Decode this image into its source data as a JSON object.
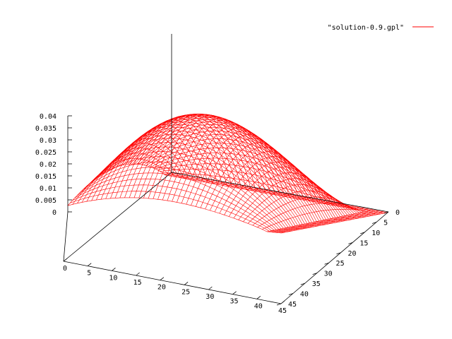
{
  "chart_data": {
    "type": "surface",
    "series_name": "\"solution-0.9.gpl\"",
    "line_color": "#ff0000",
    "axis_color": "#000000",
    "x_range": [
      0,
      45
    ],
    "y_range": [
      0,
      45
    ],
    "z_range": [
      0,
      0.04
    ],
    "x_ticks": [
      "0",
      "5",
      "10",
      "15",
      "20",
      "25",
      "30",
      "35",
      "40",
      "45"
    ],
    "y_ticks": [
      "0",
      "5",
      "10",
      "15",
      "20",
      "25",
      "30",
      "35",
      "40",
      "45"
    ],
    "z_ticks": [
      "0",
      "0.005",
      "0.01",
      "0.015",
      "0.02",
      "0.025",
      "0.03",
      "0.035",
      "0.04"
    ],
    "grid_size": 45,
    "surface_peak": 0.038,
    "corner_values": {
      "x0_y0": 0.0,
      "x45_y0": 0.0,
      "x0_y45": 0.0,
      "x45_y45": 0.0
    },
    "ridge_values": {
      "x0_y22": 0.013,
      "x22_y0": 0.014,
      "x45_y22": 0.012,
      "x22_y45": 0.021
    },
    "xlabel": "",
    "ylabel": "",
    "zlabel": "",
    "grid": false,
    "legend_position": "top-right"
  }
}
